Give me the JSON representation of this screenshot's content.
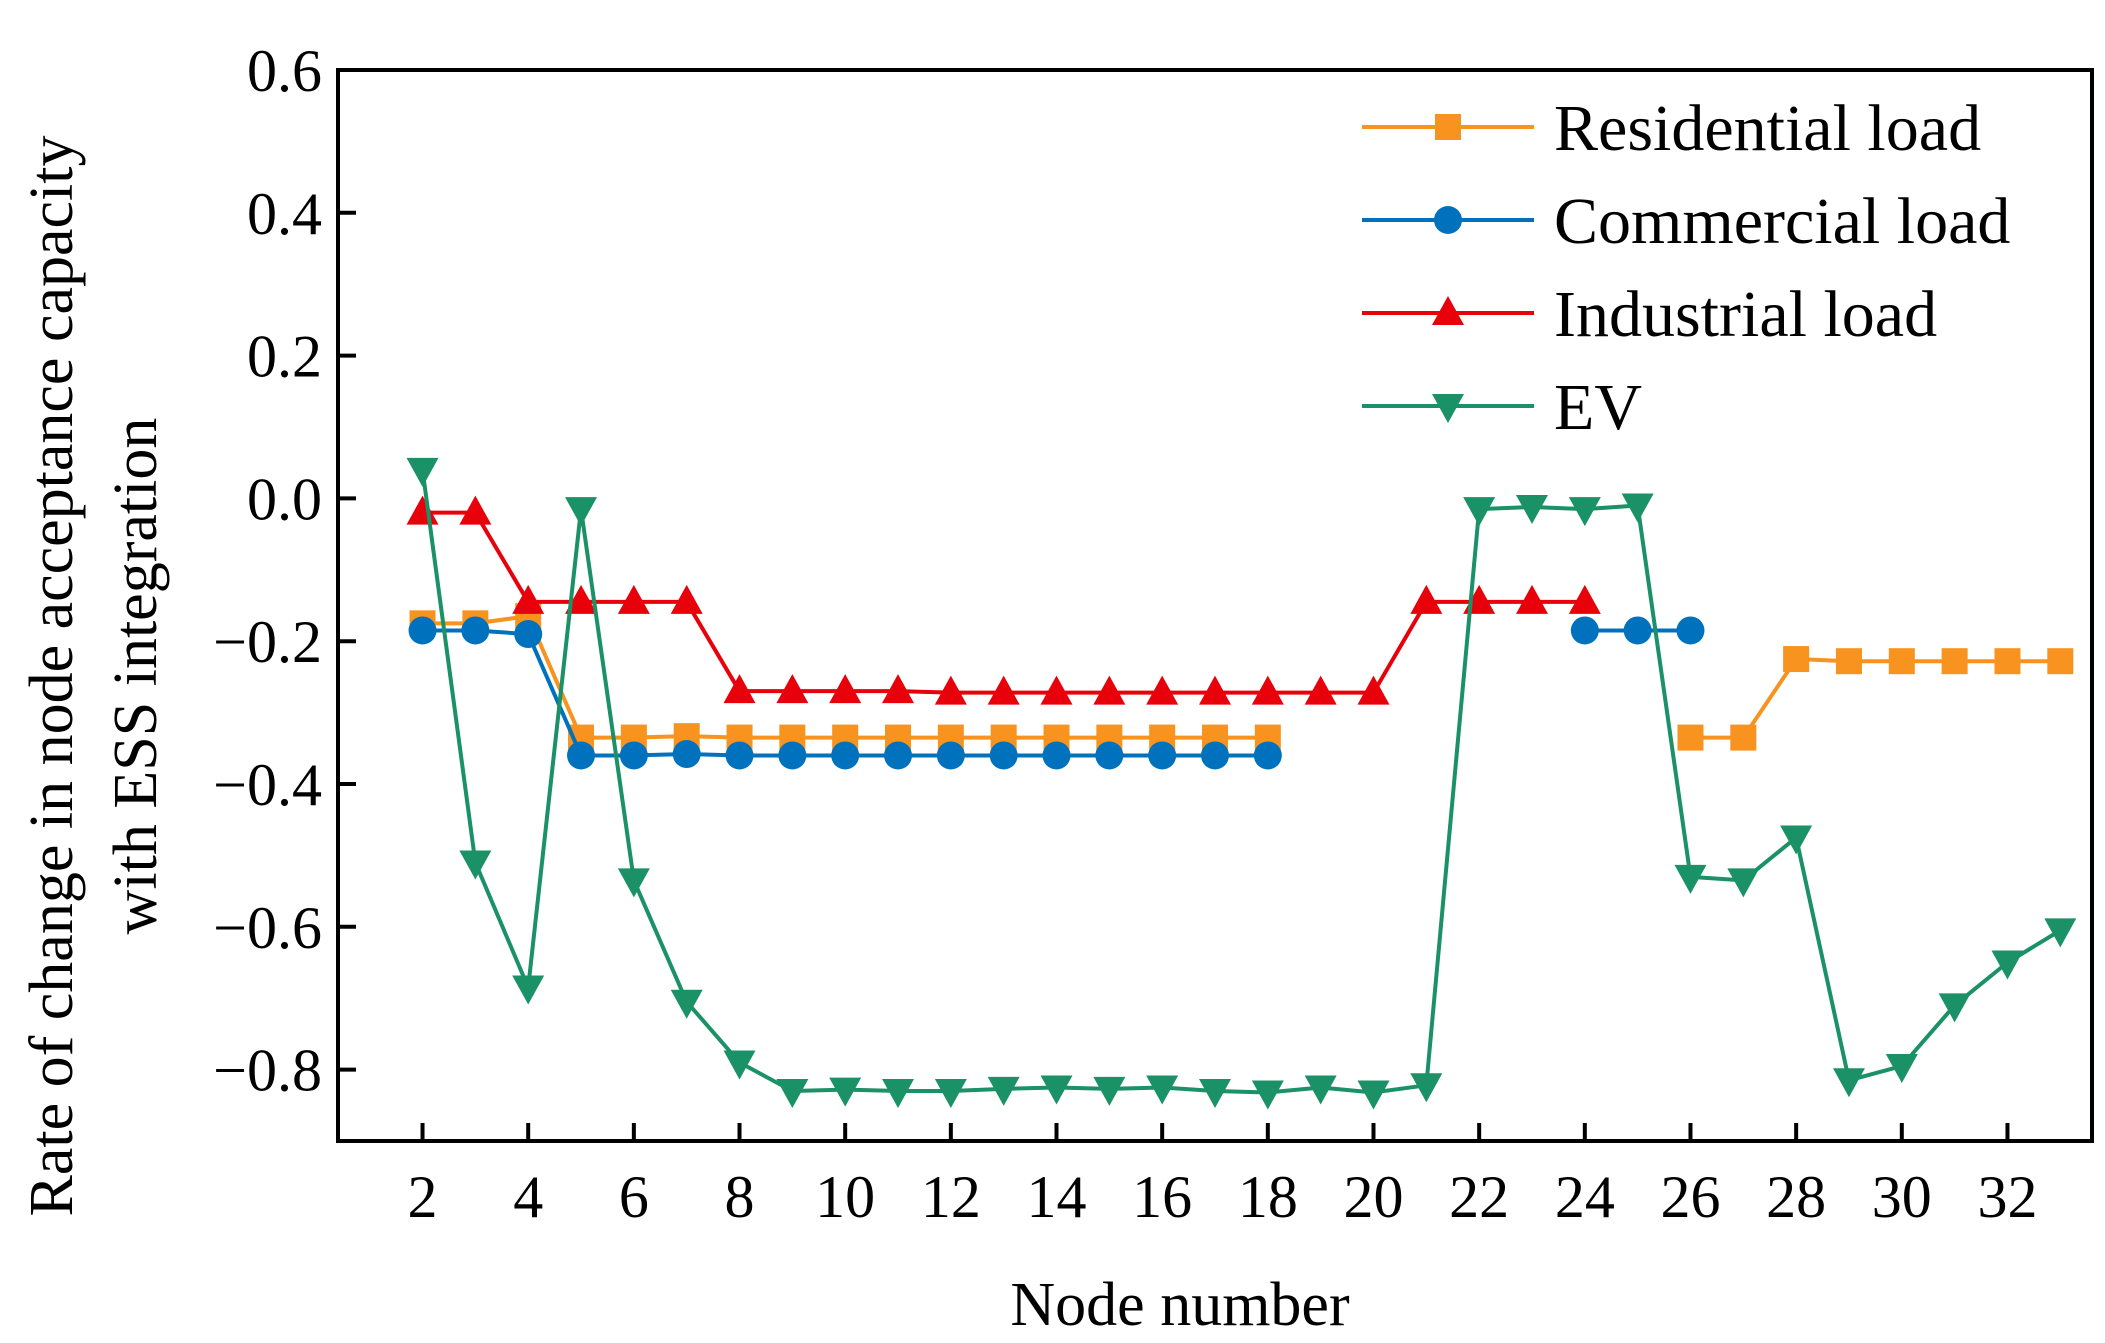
{
  "chart_data": {
    "type": "line",
    "title": "",
    "xlabel": "Node number",
    "ylabel_lines": [
      "Rate of change in node acceptance capacity",
      "with ESS integration"
    ],
    "xlim": [
      0.4,
      33.6
    ],
    "ylim": [
      -0.9,
      0.6
    ],
    "xticks": [
      2,
      4,
      6,
      8,
      10,
      12,
      14,
      16,
      18,
      20,
      22,
      24,
      26,
      28,
      30,
      32
    ],
    "xtick_labels": [
      "2",
      "4",
      "6",
      "8",
      "10",
      "12",
      "14",
      "16",
      "18",
      "20",
      "22",
      "24",
      "26",
      "28",
      "30",
      "32"
    ],
    "yticks": [
      0.6,
      0.4,
      0.2,
      0.0,
      -0.2,
      -0.4,
      -0.6,
      -0.8
    ],
    "ytick_labels": [
      "0.6",
      "0.4",
      "0.2",
      "0.0",
      "−0.2",
      "−0.4",
      "−0.6",
      "−0.8"
    ],
    "legend_position": "top-right",
    "series": [
      {
        "name": "Residential load",
        "color": "#F7931E",
        "marker": "square",
        "segments": [
          {
            "x": [
              2,
              3,
              4,
              5,
              6,
              7,
              8,
              9,
              10,
              11,
              12,
              13,
              14,
              15,
              16,
              17,
              18
            ],
            "y": [
              -0.175,
              -0.175,
              -0.165,
              -0.335,
              -0.335,
              -0.333,
              -0.335,
              -0.335,
              -0.335,
              -0.335,
              -0.335,
              -0.335,
              -0.335,
              -0.335,
              -0.335,
              -0.335,
              -0.335
            ]
          },
          {
            "x": [
              26,
              27,
              28,
              29,
              30,
              31,
              32,
              33
            ],
            "y": [
              -0.335,
              -0.335,
              -0.225,
              -0.228,
              -0.228,
              -0.228,
              -0.228,
              -0.228
            ]
          }
        ]
      },
      {
        "name": "Commercial load",
        "color": "#0072BD",
        "marker": "circle",
        "segments": [
          {
            "x": [
              2,
              3,
              4,
              5,
              6,
              7,
              8,
              9,
              10,
              11,
              12,
              13,
              14,
              15,
              16,
              17,
              18
            ],
            "y": [
              -0.185,
              -0.185,
              -0.19,
              -0.36,
              -0.36,
              -0.358,
              -0.36,
              -0.36,
              -0.36,
              -0.36,
              -0.36,
              -0.36,
              -0.36,
              -0.36,
              -0.36,
              -0.36,
              -0.36
            ]
          },
          {
            "x": [
              24,
              25,
              26
            ],
            "y": [
              -0.185,
              -0.185,
              -0.185
            ]
          }
        ]
      },
      {
        "name": "Industrial load",
        "color": "#E8000B",
        "marker": "triangle-up",
        "segments": [
          {
            "x": [
              2,
              3,
              4,
              5,
              6,
              7,
              8,
              9,
              10,
              11,
              12,
              13,
              14,
              15,
              16,
              17,
              18,
              19,
              20,
              21,
              22,
              23,
              24
            ],
            "y": [
              -0.02,
              -0.02,
              -0.145,
              -0.145,
              -0.145,
              -0.145,
              -0.27,
              -0.27,
              -0.27,
              -0.27,
              -0.272,
              -0.272,
              -0.272,
              -0.272,
              -0.272,
              -0.272,
              -0.272,
              -0.272,
              -0.272,
              -0.145,
              -0.145,
              -0.145,
              -0.145
            ]
          }
        ]
      },
      {
        "name": "EV",
        "color": "#1A9167",
        "marker": "triangle-down",
        "segments": [
          {
            "x": [
              2,
              3,
              4,
              5,
              6,
              7,
              8,
              9,
              10,
              11,
              12,
              13,
              14,
              15,
              16,
              17,
              18,
              19,
              20,
              21,
              22,
              23,
              24,
              25,
              26,
              27,
              28,
              29,
              30,
              31,
              32,
              33
            ],
            "y": [
              0.04,
              -0.51,
              -0.685,
              -0.015,
              -0.535,
              -0.705,
              -0.79,
              -0.83,
              -0.828,
              -0.83,
              -0.83,
              -0.827,
              -0.825,
              -0.827,
              -0.825,
              -0.83,
              -0.832,
              -0.825,
              -0.832,
              -0.822,
              -0.015,
              -0.012,
              -0.015,
              -0.01,
              -0.53,
              -0.535,
              -0.475,
              -0.815,
              -0.795,
              -0.71,
              -0.65,
              -0.605
            ]
          }
        ]
      }
    ]
  }
}
